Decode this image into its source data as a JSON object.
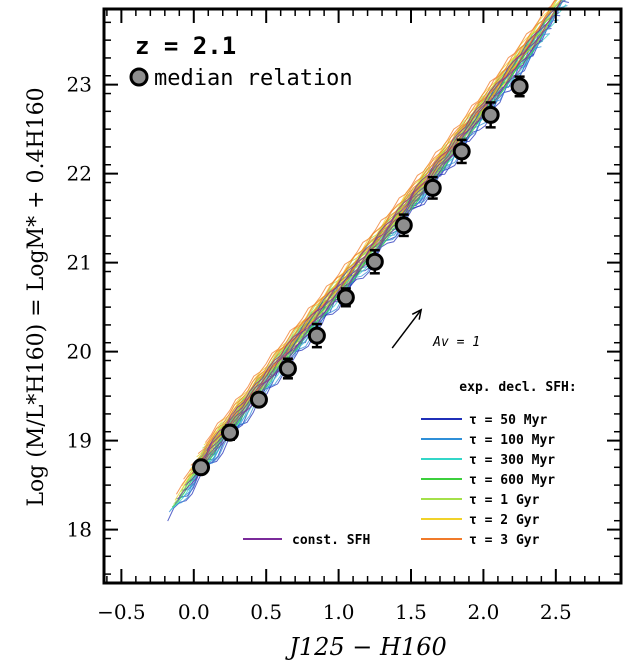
{
  "chart_data": {
    "type": "scatter",
    "title": "",
    "annotation_z": "z = 2.1",
    "median_label": "median relation",
    "xlabel": "J125 − H160",
    "ylabel": "Log (M/L*H160) = LogM* + 0.4H160",
    "xlim": [
      -0.62,
      2.95
    ],
    "ylim": [
      17.4,
      23.85
    ],
    "xticks": [
      -0.5,
      0.0,
      0.5,
      1.0,
      1.5,
      2.0,
      2.5
    ],
    "xtick_labels": [
      "−0.5",
      "0.0",
      "0.5",
      "1.0",
      "1.5",
      "2.0",
      "2.5"
    ],
    "yticks": [
      18,
      19,
      20,
      21,
      22,
      23
    ],
    "ytick_labels": [
      "18",
      "19",
      "20",
      "21",
      "22",
      "23"
    ],
    "grid": false,
    "median_points": [
      {
        "x": 0.05,
        "y": 18.7,
        "err": 0.05
      },
      {
        "x": 0.25,
        "y": 19.09,
        "err": 0.08
      },
      {
        "x": 0.45,
        "y": 19.46,
        "err": 0.05
      },
      {
        "x": 0.65,
        "y": 19.81,
        "err": 0.11
      },
      {
        "x": 0.85,
        "y": 20.18,
        "err": 0.13
      },
      {
        "x": 1.05,
        "y": 20.61,
        "err": 0.1
      },
      {
        "x": 1.25,
        "y": 21.01,
        "err": 0.13
      },
      {
        "x": 1.45,
        "y": 21.42,
        "err": 0.12
      },
      {
        "x": 1.65,
        "y": 21.84,
        "err": 0.12
      },
      {
        "x": 1.85,
        "y": 22.25,
        "err": 0.13
      },
      {
        "x": 2.05,
        "y": 22.66,
        "err": 0.14
      },
      {
        "x": 2.25,
        "y": 22.98,
        "err": 0.11
      }
    ],
    "dust_vector": {
      "label": "Av = 1",
      "from": [
        1.37,
        20.04
      ],
      "to": [
        1.57,
        20.47
      ]
    },
    "legend_title": "exp. decl. SFH:",
    "legend_position": "bottom-right",
    "series": [
      {
        "name": "τ = 50 Myr",
        "color": "#1f2fb8",
        "offset": -0.06
      },
      {
        "name": "τ = 100 Myr",
        "color": "#2f8fd8",
        "offset": -0.03
      },
      {
        "name": "τ = 300 Myr",
        "color": "#33d6c8",
        "offset": 0.0
      },
      {
        "name": "τ = 600 Myr",
        "color": "#3ccf3c",
        "offset": 0.03
      },
      {
        "name": "τ = 1 Gyr",
        "color": "#a4e04a",
        "offset": 0.06
      },
      {
        "name": "τ = 2 Gyr",
        "color": "#f0d22a",
        "offset": 0.09
      },
      {
        "name": "τ = 3 Gyr",
        "color": "#f07a2a",
        "offset": 0.12
      }
    ],
    "const_series": {
      "name": "const. SFH",
      "color": "#7a2a9a"
    }
  }
}
